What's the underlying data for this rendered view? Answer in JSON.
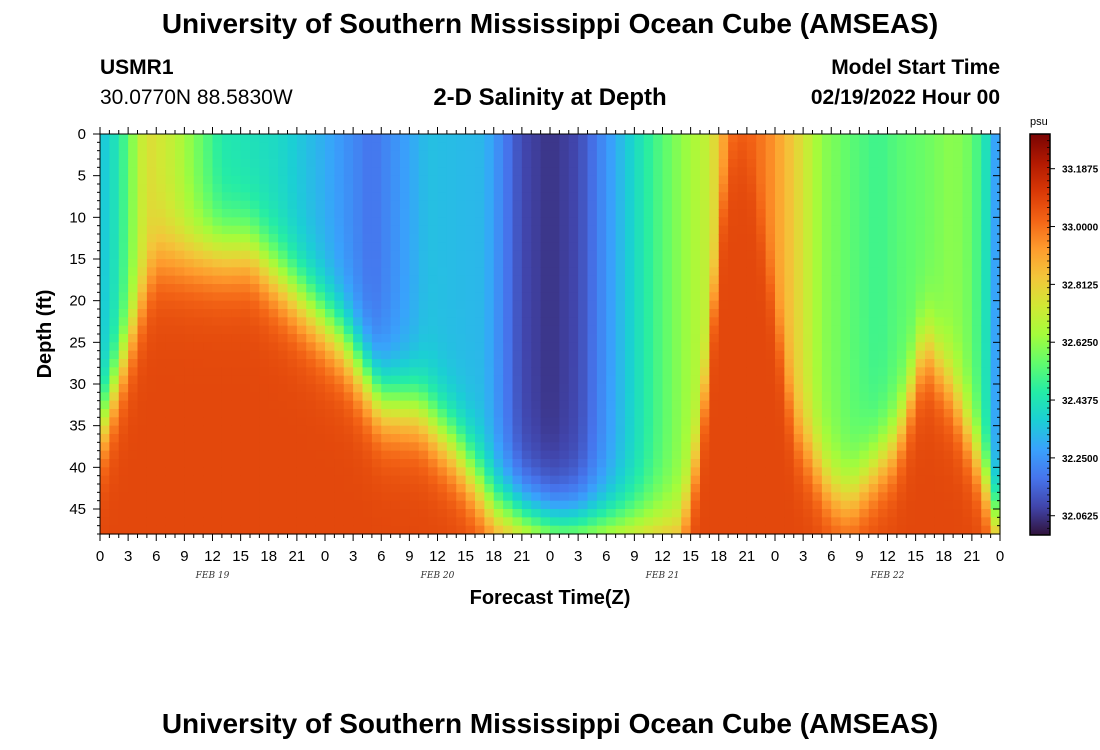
{
  "header": {
    "title": "University of Southern Mississippi Ocean Cube (AMSEAS)",
    "station": "USMR1",
    "coords": "30.0770N  88.5830W",
    "subtitle": "2-D Salinity at Depth",
    "model_start_label": "Model Start Time",
    "model_start_value": "02/19/2022 Hour 00"
  },
  "footer": {
    "title": "University of Southern Mississippi Ocean Cube (AMSEAS)"
  },
  "chart_data": {
    "type": "heatmap",
    "title": "2-D Salinity at Depth",
    "xlabel": "Forecast Time(Z)",
    "ylabel": "Depth (ft)",
    "x_range_hours": [
      0,
      96
    ],
    "y_range_ft": [
      0,
      48
    ],
    "x_tick_labels": [
      "0",
      "3",
      "6",
      "9",
      "12",
      "15",
      "18",
      "21",
      "0",
      "3",
      "6",
      "9",
      "12",
      "15",
      "18",
      "21",
      "0",
      "3",
      "6",
      "9",
      "12",
      "15",
      "18",
      "21",
      "0",
      "3",
      "6",
      "9",
      "12",
      "15",
      "18",
      "21",
      "0"
    ],
    "y_ticks": [
      0,
      5,
      10,
      15,
      20,
      25,
      30,
      35,
      40,
      45
    ],
    "date_labels": [
      {
        "text": "FEB 19",
        "hour": 12
      },
      {
        "text": "FEB 20",
        "hour": 36
      },
      {
        "text": "FEB 21",
        "hour": 60
      },
      {
        "text": "FEB 22",
        "hour": 84
      }
    ],
    "colorbar": {
      "unit": "psu",
      "min": 32.0,
      "max": 33.3,
      "tick_labels": [
        "33.1875",
        "33.0000",
        "32.8125",
        "32.6250",
        "32.4375",
        "32.2500",
        "32.0625"
      ],
      "tick_values": [
        33.1875,
        33.0,
        32.8125,
        32.625,
        32.4375,
        32.25,
        32.0625
      ],
      "colormap": [
        "#30123b",
        "#4145ab",
        "#4675ed",
        "#39a2fc",
        "#1bcfd4",
        "#24eca6",
        "#61fc6c",
        "#a4fc3b",
        "#d1e834",
        "#f3c63a",
        "#fe9b2d",
        "#f36315",
        "#d93806",
        "#b11901",
        "#7a0403"
      ]
    },
    "surface_salinity_profile": {
      "hours": [
        0,
        2,
        5,
        8,
        13,
        19,
        24,
        29,
        32,
        35,
        41,
        45,
        48,
        51,
        55,
        59,
        62,
        65,
        67,
        69,
        71,
        74,
        77,
        80,
        83,
        85,
        88,
        91,
        93,
        95.3,
        96
      ],
      "values": [
        32.34,
        32.45,
        32.78,
        32.7,
        32.45,
        32.4,
        32.3,
        32.18,
        32.26,
        32.34,
        32.32,
        32.1,
        32.06,
        32.1,
        32.3,
        32.5,
        32.62,
        32.72,
        32.96,
        33.02,
        32.98,
        32.82,
        32.62,
        32.55,
        32.5,
        32.54,
        32.57,
        32.62,
        32.57,
        32.35,
        32.12
      ]
    },
    "bottom_salinity_value": 33.08
  }
}
